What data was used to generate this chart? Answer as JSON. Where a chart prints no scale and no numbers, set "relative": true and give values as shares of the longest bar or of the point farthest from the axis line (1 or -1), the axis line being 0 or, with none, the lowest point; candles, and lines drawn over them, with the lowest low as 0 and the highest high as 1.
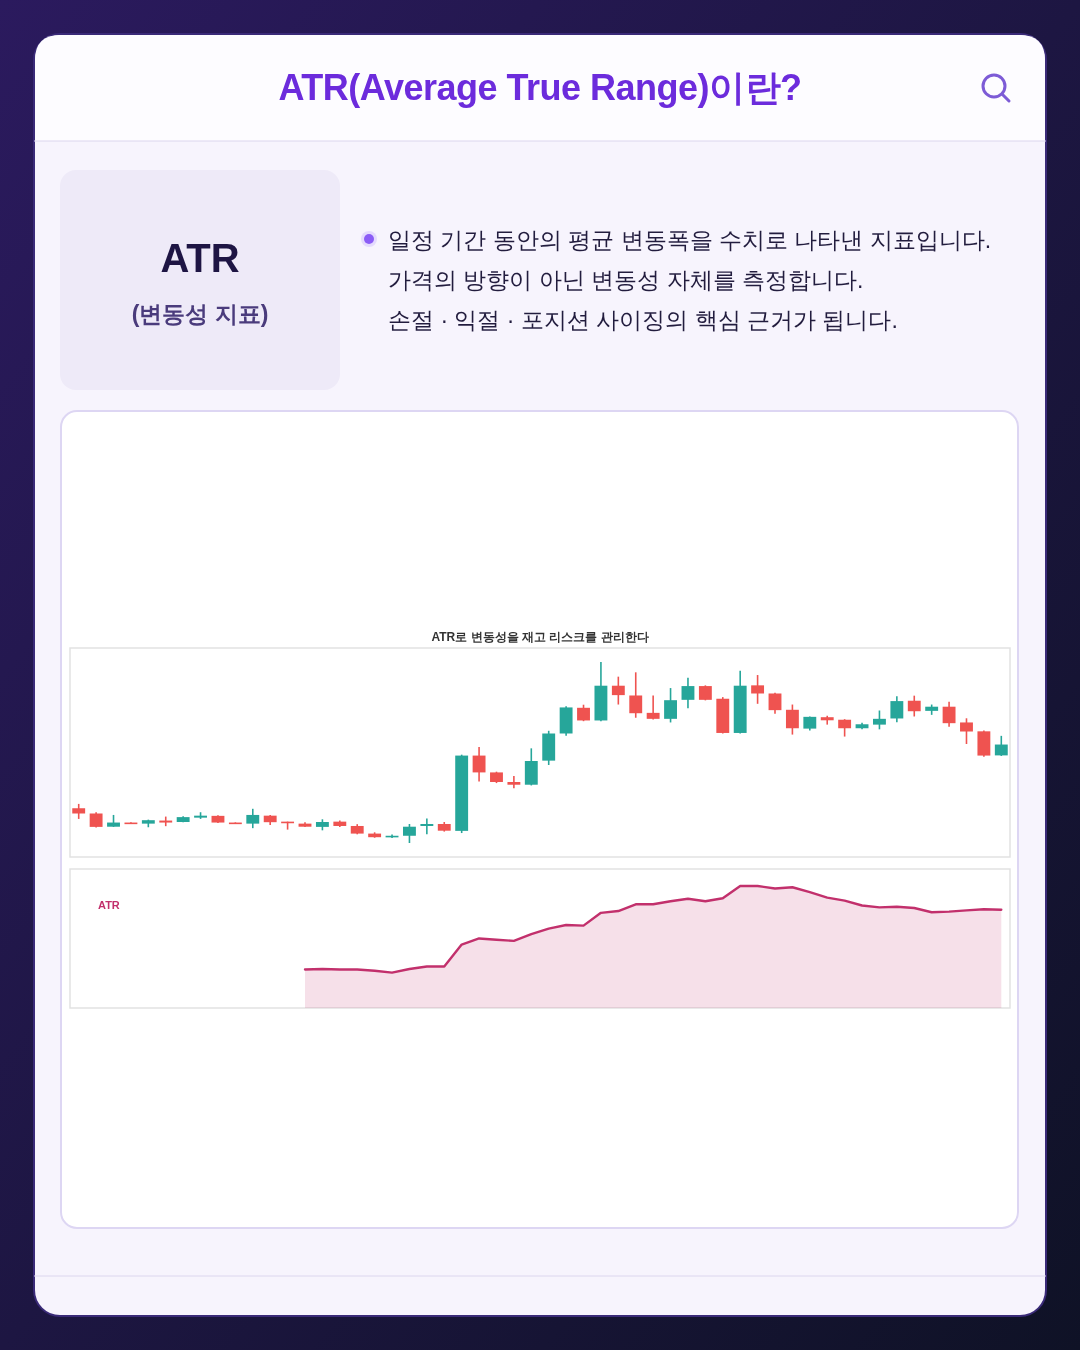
{
  "chart_data": [
    {
      "type": "other",
      "title": "ATR(Average True Range)이란?",
      "annotations": [
        "ATR",
        "(변동성 지표)",
        "일정 기간 동안의 평균 변동폭을 수치로 나타낸 지표입니다.",
        "가격의 방향이 아닌 변동성 자체를 측정합니다.",
        "손절 · 익절 · 포지션 사이징의 핵심 근거가 됩니다."
      ]
    },
    {
      "type": "candlestick",
      "title": "ATR로 변동성을 재고 리스크를 관리한다",
      "relative": true,
      "categories": [
        null,
        null,
        null,
        null,
        null,
        null,
        null,
        null,
        null,
        null,
        null,
        null,
        null,
        null,
        null,
        null,
        null,
        null,
        null,
        null,
        null,
        null,
        null,
        null,
        null,
        null,
        null,
        null,
        null,
        null,
        null,
        null,
        null,
        null,
        null,
        null,
        null,
        null,
        null,
        null,
        null,
        null,
        null,
        null,
        null,
        null,
        null,
        null,
        null,
        null,
        null,
        null,
        null,
        null
      ],
      "ohlc": [
        [
          0.192,
          0.216,
          0.133,
          0.163
        ],
        [
          0.163,
          0.17,
          0.085,
          0.089
        ],
        [
          0.09,
          0.155,
          0.089,
          0.113
        ],
        [
          0.113,
          0.115,
          0.105,
          0.107
        ],
        [
          0.107,
          0.129,
          0.087,
          0.126
        ],
        [
          0.124,
          0.146,
          0.093,
          0.113
        ],
        [
          0.116,
          0.148,
          0.115,
          0.143
        ],
        [
          0.14,
          0.17,
          0.133,
          0.151
        ],
        [
          0.15,
          0.154,
          0.111,
          0.113
        ],
        [
          0.113,
          0.114,
          0.105,
          0.107
        ],
        [
          0.107,
          0.189,
          0.082,
          0.155
        ],
        [
          0.151,
          0.155,
          0.1,
          0.115
        ],
        [
          0.118,
          0.118,
          0.074,
          0.111
        ],
        [
          0.107,
          0.115,
          0.089,
          0.09
        ],
        [
          0.089,
          0.131,
          0.07,
          0.116
        ],
        [
          0.118,
          0.124,
          0.089,
          0.094
        ],
        [
          0.094,
          0.104,
          0.048,
          0.052
        ],
        [
          0.052,
          0.059,
          0.029,
          0.032
        ],
        [
          0.033,
          0.047,
          0.028,
          0.04
        ],
        [
          0.04,
          0.105,
          0,
          0.09
        ],
        [
          0.094,
          0.135,
          0.048,
          0.105
        ],
        [
          0.105,
          0.116,
          0.063,
          0.068
        ],
        [
          0.067,
          0.488,
          0.055,
          0.483
        ],
        [
          0.483,
          0.531,
          0.34,
          0.39
        ],
        [
          0.39,
          0.394,
          0.331,
          0.337
        ],
        [
          0.337,
          0.37,
          0.303,
          0.322
        ],
        [
          0.322,
          0.523,
          0.318,
          0.453
        ],
        [
          0.455,
          0.62,
          0.431,
          0.605
        ],
        [
          0.605,
          0.756,
          0.593,
          0.749
        ],
        [
          0.747,
          0.764,
          0.673,
          0.677
        ],
        [
          0.677,
          1,
          0.673,
          0.869
        ],
        [
          0.869,
          0.919,
          0.765,
          0.817
        ],
        [
          0.815,
          0.943,
          0.692,
          0.717
        ],
        [
          0.719,
          0.815,
          0.682,
          0.686
        ],
        [
          0.686,
          0.856,
          0.666,
          0.789
        ],
        [
          0.791,
          0.913,
          0.745,
          0.867
        ],
        [
          0.867,
          0.871,
          0.788,
          0.791
        ],
        [
          0.797,
          0.806,
          0.605,
          0.608
        ],
        [
          0.608,
          0.952,
          0.605,
          0.869
        ],
        [
          0.871,
          0.928,
          0.769,
          0.826
        ],
        [
          0.826,
          0.83,
          0.714,
          0.734
        ],
        [
          0.736,
          0.765,
          0.599,
          0.634
        ],
        [
          0.632,
          0.699,
          0.621,
          0.697
        ],
        [
          0.695,
          0.703,
          0.654,
          0.678
        ],
        [
          0.681,
          0.684,
          0.588,
          0.634
        ],
        [
          0.634,
          0.664,
          0.628,
          0.656
        ],
        [
          0.654,
          0.732,
          0.628,
          0.686
        ],
        [
          0.688,
          0.811,
          0.667,
          0.784
        ],
        [
          0.786,
          0.814,
          0.699,
          0.728
        ],
        [
          0.73,
          0.765,
          0.708,
          0.753
        ],
        [
          0.753,
          0.78,
          0.642,
          0.662
        ],
        [
          0.666,
          0.689,
          0.547,
          0.616
        ],
        [
          0.617,
          0.621,
          0.477,
          0.483
        ],
        [
          0.484,
          0.592,
          0.481,
          0.544
        ]
      ],
      "colors": [
        "#ef5350",
        "#ef5350",
        "#26a69a",
        "#ef5350",
        "#26a69a",
        "#ef5350",
        "#26a69a",
        "#26a69a",
        "#ef5350",
        "#ef5350",
        "#26a69a",
        "#ef5350",
        "#ef5350",
        "#ef5350",
        "#26a69a",
        "#ef5350",
        "#ef5350",
        "#ef5350",
        "#26a69a",
        "#26a69a",
        "#26a69a",
        "#ef5350",
        "#26a69a",
        "#ef5350",
        "#ef5350",
        "#ef5350",
        "#26a69a",
        "#26a69a",
        "#26a69a",
        "#ef5350",
        "#26a69a",
        "#ef5350",
        "#ef5350",
        "#ef5350",
        "#26a69a",
        "#26a69a",
        "#ef5350",
        "#ef5350",
        "#26a69a",
        "#ef5350",
        "#ef5350",
        "#ef5350",
        "#26a69a",
        "#ef5350",
        "#ef5350",
        "#26a69a",
        "#26a69a",
        "#26a69a",
        "#ef5350",
        "#26a69a",
        "#ef5350",
        "#ef5350",
        "#ef5350",
        "#26a69a"
      ]
    },
    {
      "type": "area",
      "relative": true,
      "legend": "top left",
      "categories": [
        null,
        null,
        null,
        null,
        null,
        null,
        null,
        null,
        null,
        null,
        null,
        null,
        null,
        null,
        null,
        null,
        null,
        null,
        null,
        null,
        null,
        null,
        null,
        null,
        null,
        null,
        null,
        null,
        null,
        null,
        null,
        null,
        null,
        null,
        null,
        null,
        null,
        null,
        null,
        null,
        null,
        null,
        null,
        null,
        null,
        null,
        null,
        null,
        null,
        null,
        null,
        null,
        null,
        null
      ],
      "series": [
        {
          "name": "ATR",
          "color": "#c2306c",
          "values": [
            null,
            null,
            null,
            null,
            null,
            null,
            null,
            null,
            null,
            null,
            null,
            null,
            null,
            0.315,
            0.32,
            0.315,
            0.315,
            0.305,
            0.29,
            0.32,
            0.34,
            0.34,
            0.52,
            0.57,
            0.56,
            0.55,
            0.605,
            0.65,
            0.68,
            0.675,
            0.78,
            0.795,
            0.85,
            0.85,
            0.875,
            0.895,
            0.875,
            0.9,
            1,
            1,
            0.98,
            0.99,
            0.95,
            0.905,
            0.88,
            0.84,
            0.825,
            0.83,
            0.82,
            0.785,
            0.79,
            0.8,
            0.81,
            0.805
          ]
        }
      ]
    }
  ]
}
